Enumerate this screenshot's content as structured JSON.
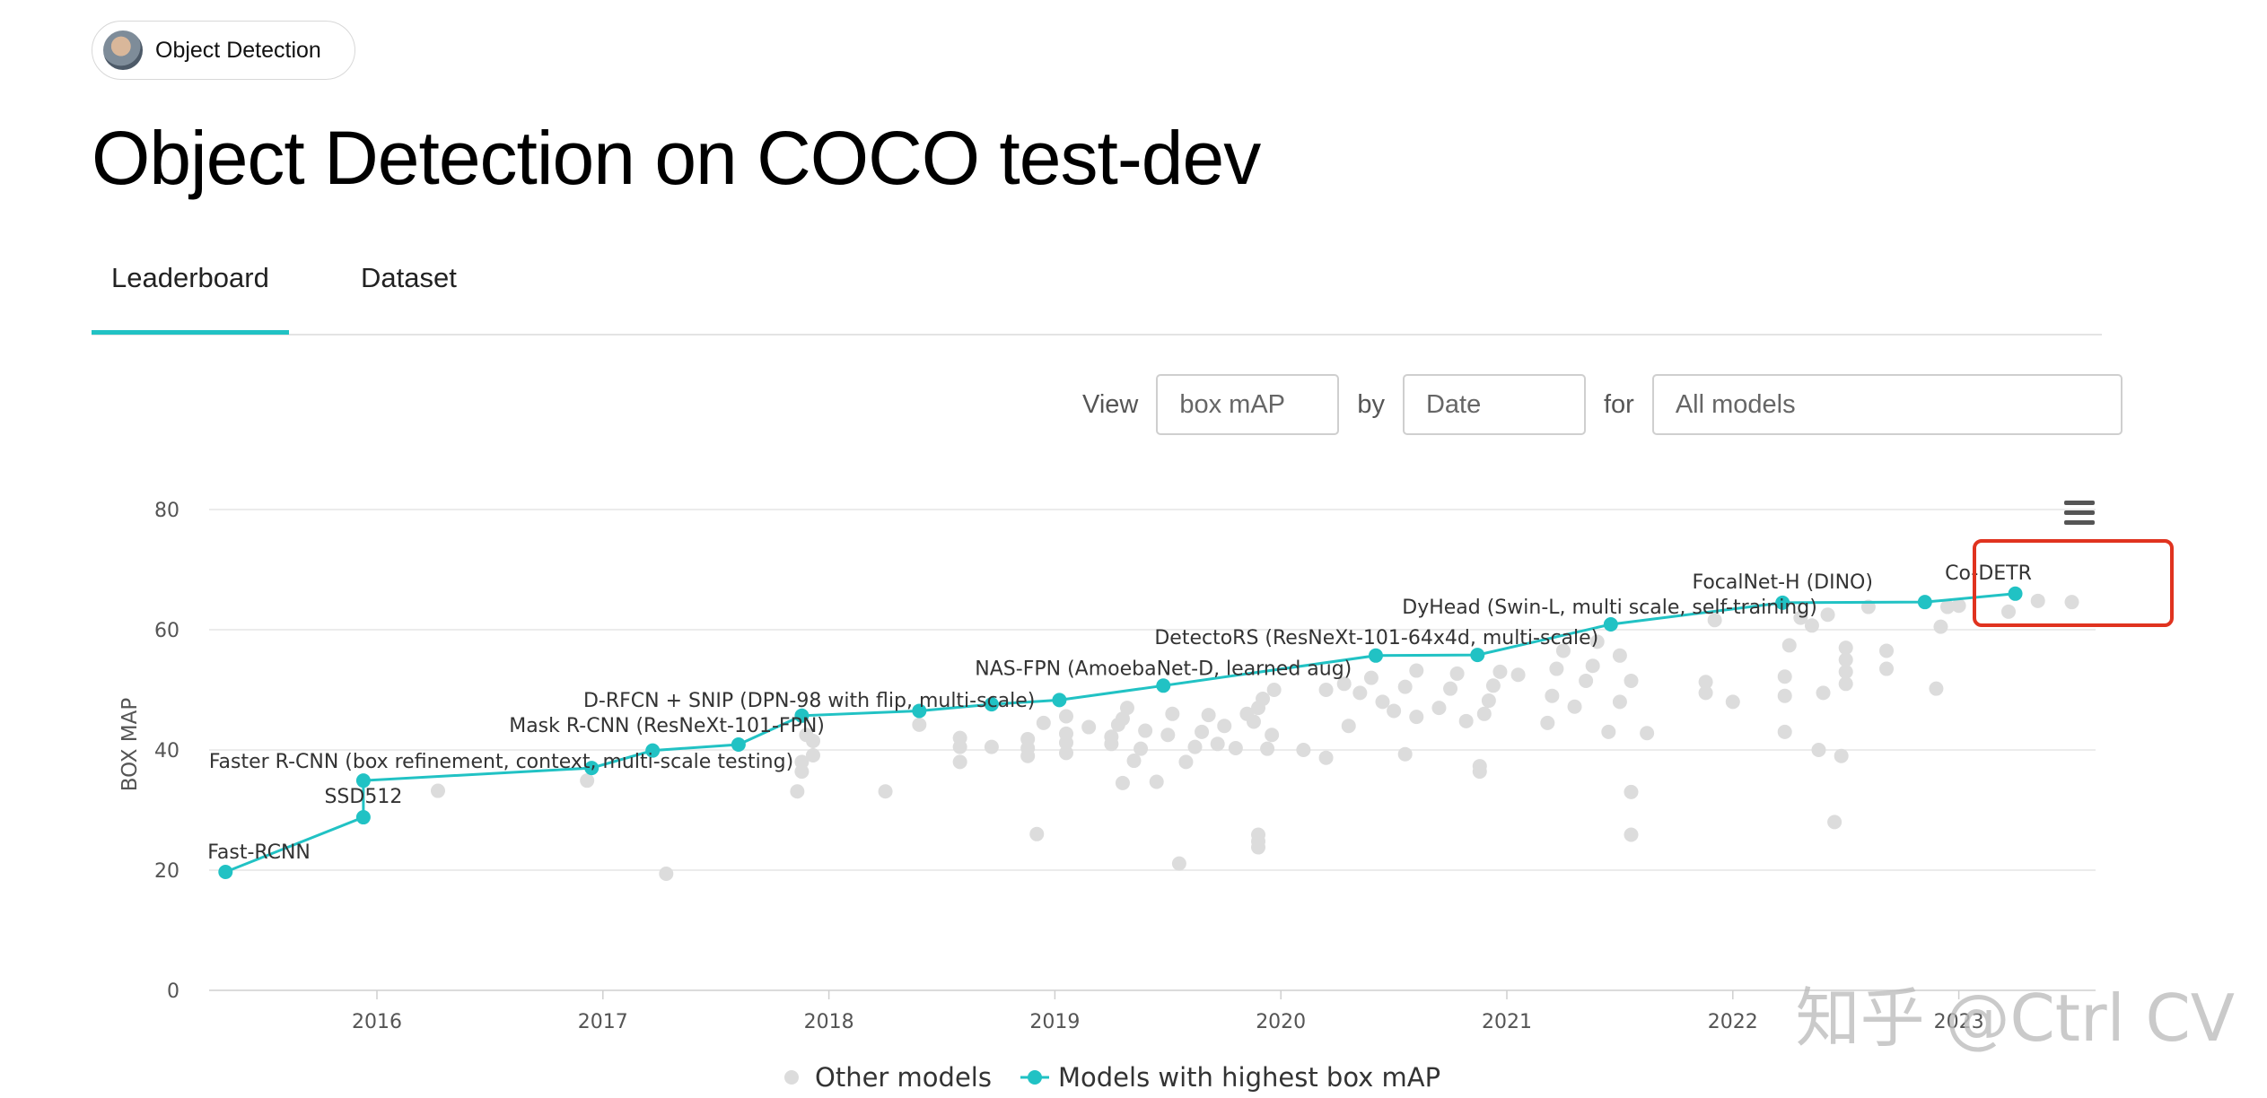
{
  "header": {
    "chip_label": "Object Detection",
    "title": "Object Detection on COCO test-dev"
  },
  "tabs": [
    {
      "label": "Leaderboard",
      "active": true
    },
    {
      "label": "Dataset",
      "active": false
    }
  ],
  "filters": {
    "view_label": "View",
    "metric_value": "box mAP",
    "by_label": "by",
    "by_value": "Date",
    "for_label": "for",
    "models_value": "All models"
  },
  "watermark": "知乎 @Ctrl CV",
  "colors": {
    "accent": "#21c2c4",
    "other_points": "#dcdcdc",
    "highlight_box": "#e0331f",
    "grid": "#e6e6e6"
  },
  "chart_data": {
    "type": "scatter",
    "ylabel": "BOX MAP",
    "xlabel": "",
    "ylim": [
      0,
      80
    ],
    "xlim": [
      2015.25,
      2023.6
    ],
    "y_ticks": [
      "0",
      "20",
      "40",
      "60",
      "80"
    ],
    "x_ticks": [
      "2016",
      "2017",
      "2018",
      "2019",
      "2020",
      "2021",
      "2022",
      "2023"
    ],
    "grid": true,
    "legend_position": "bottom",
    "menu_icon": "hamburger-menu-icon",
    "highlighted_label": "Co-DETR",
    "series": [
      {
        "name": "Models with highest box mAP",
        "points": [
          {
            "x": 2015.33,
            "y": 19.7,
            "label": "Fast-RCNN"
          },
          {
            "x": 2015.94,
            "y": 28.8,
            "label": "SSD512"
          },
          {
            "x": 2015.94,
            "y": 34.9,
            "label": "Faster R-CNN (box refinement, context, multi-scale testing)"
          },
          {
            "x": 2016.95,
            "y": 37.0,
            "label": ""
          },
          {
            "x": 2017.22,
            "y": 39.9,
            "label": ""
          },
          {
            "x": 2017.6,
            "y": 40.9,
            "label": "Mask R-CNN (ResNeXt-101-FPN)"
          },
          {
            "x": 2017.88,
            "y": 45.7,
            "label": "D-RFCN + SNIP (DPN-98 with flip, multi-scale)"
          },
          {
            "x": 2018.4,
            "y": 46.5,
            "label": ""
          },
          {
            "x": 2018.72,
            "y": 47.6,
            "label": ""
          },
          {
            "x": 2019.02,
            "y": 48.3,
            "label": ""
          },
          {
            "x": 2019.48,
            "y": 50.7,
            "label": "NAS-FPN (AmoebaNet-D, learned aug)"
          },
          {
            "x": 2020.42,
            "y": 55.7,
            "label": ""
          },
          {
            "x": 2020.87,
            "y": 55.8,
            "label": "DetectoRS (ResNeXt-101-64x4d, multi-scale)"
          },
          {
            "x": 2021.46,
            "y": 60.9,
            "label": "DyHead (Swin-L, multi scale, self-training)"
          },
          {
            "x": 2022.22,
            "y": 64.5,
            "label": "FocalNet-H (DINO)"
          },
          {
            "x": 2022.85,
            "y": 64.6,
            "label": ""
          },
          {
            "x": 2023.25,
            "y": 66.0,
            "label": "Co-DETR"
          }
        ]
      },
      {
        "name": "Other models",
        "points": [
          {
            "x": 2016.27,
            "y": 33.2
          },
          {
            "x": 2016.93,
            "y": 34.9
          },
          {
            "x": 2017.28,
            "y": 19.4
          },
          {
            "x": 2017.86,
            "y": 33.1
          },
          {
            "x": 2017.88,
            "y": 36.4
          },
          {
            "x": 2017.88,
            "y": 38.0
          },
          {
            "x": 2017.93,
            "y": 39.1
          },
          {
            "x": 2017.93,
            "y": 41.5
          },
          {
            "x": 2017.9,
            "y": 42.5
          },
          {
            "x": 2018.25,
            "y": 33.1
          },
          {
            "x": 2018.4,
            "y": 44.2
          },
          {
            "x": 2018.58,
            "y": 38.0
          },
          {
            "x": 2018.58,
            "y": 40.5
          },
          {
            "x": 2018.58,
            "y": 42.0
          },
          {
            "x": 2018.72,
            "y": 40.5
          },
          {
            "x": 2018.88,
            "y": 40.3
          },
          {
            "x": 2018.88,
            "y": 39.0
          },
          {
            "x": 2018.88,
            "y": 41.8
          },
          {
            "x": 2018.92,
            "y": 26.0
          },
          {
            "x": 2018.95,
            "y": 44.5
          },
          {
            "x": 2019.05,
            "y": 39.5
          },
          {
            "x": 2019.05,
            "y": 41.2
          },
          {
            "x": 2019.05,
            "y": 42.7
          },
          {
            "x": 2019.05,
            "y": 45.6
          },
          {
            "x": 2019.15,
            "y": 43.8
          },
          {
            "x": 2019.25,
            "y": 41.0
          },
          {
            "x": 2019.25,
            "y": 42.2
          },
          {
            "x": 2019.28,
            "y": 44.2
          },
          {
            "x": 2019.3,
            "y": 45.2
          },
          {
            "x": 2019.32,
            "y": 47.0
          },
          {
            "x": 2019.3,
            "y": 34.5
          },
          {
            "x": 2019.35,
            "y": 38.2
          },
          {
            "x": 2019.38,
            "y": 40.2
          },
          {
            "x": 2019.4,
            "y": 43.2
          },
          {
            "x": 2019.45,
            "y": 34.7
          },
          {
            "x": 2019.5,
            "y": 42.5
          },
          {
            "x": 2019.52,
            "y": 46.0
          },
          {
            "x": 2019.55,
            "y": 21.1
          },
          {
            "x": 2019.58,
            "y": 38.0
          },
          {
            "x": 2019.62,
            "y": 40.5
          },
          {
            "x": 2019.65,
            "y": 43.0
          },
          {
            "x": 2019.68,
            "y": 45.8
          },
          {
            "x": 2019.72,
            "y": 41.0
          },
          {
            "x": 2019.75,
            "y": 44.0
          },
          {
            "x": 2019.8,
            "y": 40.3
          },
          {
            "x": 2019.85,
            "y": 46.0
          },
          {
            "x": 2019.88,
            "y": 44.7
          },
          {
            "x": 2019.9,
            "y": 47.0
          },
          {
            "x": 2019.92,
            "y": 48.5
          },
          {
            "x": 2019.94,
            "y": 40.2
          },
          {
            "x": 2019.96,
            "y": 42.5
          },
          {
            "x": 2019.9,
            "y": 23.8
          },
          {
            "x": 2019.9,
            "y": 24.8
          },
          {
            "x": 2019.9,
            "y": 25.9
          },
          {
            "x": 2019.97,
            "y": 50.0
          },
          {
            "x": 2020.1,
            "y": 40.0
          },
          {
            "x": 2020.2,
            "y": 38.7
          },
          {
            "x": 2020.2,
            "y": 50.0
          },
          {
            "x": 2020.28,
            "y": 51.0
          },
          {
            "x": 2020.3,
            "y": 44.0
          },
          {
            "x": 2020.35,
            "y": 49.5
          },
          {
            "x": 2020.4,
            "y": 52.0
          },
          {
            "x": 2020.45,
            "y": 48.0
          },
          {
            "x": 2020.5,
            "y": 46.5
          },
          {
            "x": 2020.55,
            "y": 39.3
          },
          {
            "x": 2020.55,
            "y": 50.5
          },
          {
            "x": 2020.6,
            "y": 53.2
          },
          {
            "x": 2020.6,
            "y": 45.5
          },
          {
            "x": 2020.7,
            "y": 47.0
          },
          {
            "x": 2020.75,
            "y": 50.2
          },
          {
            "x": 2020.78,
            "y": 52.7
          },
          {
            "x": 2020.82,
            "y": 44.8
          },
          {
            "x": 2020.88,
            "y": 36.4
          },
          {
            "x": 2020.88,
            "y": 37.3
          },
          {
            "x": 2020.9,
            "y": 46.0
          },
          {
            "x": 2020.92,
            "y": 48.2
          },
          {
            "x": 2020.94,
            "y": 50.7
          },
          {
            "x": 2020.97,
            "y": 53.0
          },
          {
            "x": 2021.05,
            "y": 52.5
          },
          {
            "x": 2021.18,
            "y": 44.5
          },
          {
            "x": 2021.2,
            "y": 49.0
          },
          {
            "x": 2021.22,
            "y": 53.5
          },
          {
            "x": 2021.25,
            "y": 56.5
          },
          {
            "x": 2021.3,
            "y": 47.2
          },
          {
            "x": 2021.35,
            "y": 51.5
          },
          {
            "x": 2021.38,
            "y": 54.0
          },
          {
            "x": 2021.4,
            "y": 58.0
          },
          {
            "x": 2021.45,
            "y": 43.0
          },
          {
            "x": 2021.5,
            "y": 48.0
          },
          {
            "x": 2021.5,
            "y": 55.7
          },
          {
            "x": 2021.55,
            "y": 51.5
          },
          {
            "x": 2021.55,
            "y": 33.0
          },
          {
            "x": 2021.55,
            "y": 25.9
          },
          {
            "x": 2021.62,
            "y": 42.8
          },
          {
            "x": 2021.88,
            "y": 49.5
          },
          {
            "x": 2021.88,
            "y": 51.3
          },
          {
            "x": 2021.92,
            "y": 61.6
          },
          {
            "x": 2022.0,
            "y": 48.0
          },
          {
            "x": 2022.23,
            "y": 43.0
          },
          {
            "x": 2022.23,
            "y": 49.0
          },
          {
            "x": 2022.23,
            "y": 52.2
          },
          {
            "x": 2022.25,
            "y": 57.4
          },
          {
            "x": 2022.3,
            "y": 62.0
          },
          {
            "x": 2022.35,
            "y": 60.7
          },
          {
            "x": 2022.38,
            "y": 40.0
          },
          {
            "x": 2022.4,
            "y": 49.5
          },
          {
            "x": 2022.42,
            "y": 62.5
          },
          {
            "x": 2022.45,
            "y": 28.0
          },
          {
            "x": 2022.48,
            "y": 39.0
          },
          {
            "x": 2022.5,
            "y": 51.0
          },
          {
            "x": 2022.5,
            "y": 53.0
          },
          {
            "x": 2022.5,
            "y": 55.0
          },
          {
            "x": 2022.5,
            "y": 57.0
          },
          {
            "x": 2022.6,
            "y": 63.8
          },
          {
            "x": 2022.68,
            "y": 53.5
          },
          {
            "x": 2022.68,
            "y": 56.5
          },
          {
            "x": 2022.9,
            "y": 50.2
          },
          {
            "x": 2022.92,
            "y": 60.5
          },
          {
            "x": 2022.95,
            "y": 63.8
          },
          {
            "x": 2023.0,
            "y": 64.0
          },
          {
            "x": 2023.22,
            "y": 63.0
          },
          {
            "x": 2023.35,
            "y": 64.8
          },
          {
            "x": 2023.5,
            "y": 64.6
          }
        ]
      }
    ]
  }
}
